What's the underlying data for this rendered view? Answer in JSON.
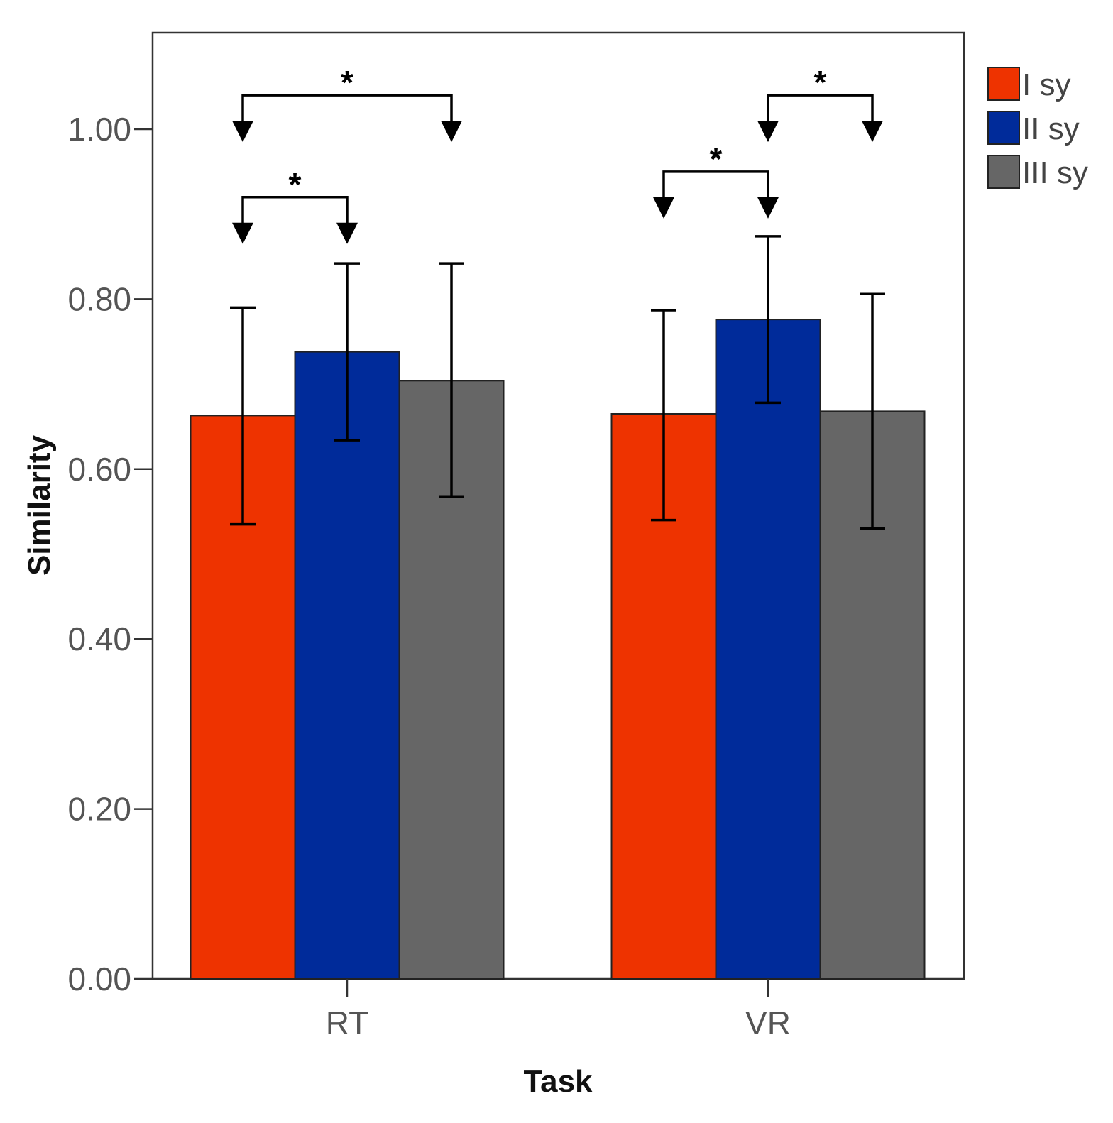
{
  "chart_data": {
    "type": "bar",
    "title": "",
    "xlabel": "Task",
    "ylabel": "Similarity",
    "ylim": [
      0,
      1.1
    ],
    "yticks": [
      "0.00",
      "0.20",
      "0.40",
      "0.60",
      "0.80",
      "1.00"
    ],
    "grid": false,
    "legend_position": "top-right",
    "categories": [
      "RT",
      "VR"
    ],
    "series": [
      {
        "name": "I sy",
        "color": "#EE3300",
        "values": [
          0.663,
          0.665
        ],
        "err_low": [
          0.535,
          0.54
        ],
        "err_high": [
          0.79,
          0.787
        ]
      },
      {
        "name": "II sy",
        "color": "#002B9A",
        "values": [
          0.738,
          0.776
        ],
        "err_low": [
          0.634,
          0.678
        ],
        "err_high": [
          0.842,
          0.874
        ]
      },
      {
        "name": "III sy",
        "color": "#666666",
        "values": [
          0.704,
          0.668
        ],
        "err_low": [
          0.567,
          0.53
        ],
        "err_high": [
          0.842,
          0.806
        ]
      }
    ],
    "annotations": [
      {
        "label": "*",
        "category": "RT",
        "from_series": 0,
        "to_series": 2,
        "level": 1.04
      },
      {
        "label": "*",
        "category": "RT",
        "from_series": 0,
        "to_series": 1,
        "level": 0.92
      },
      {
        "label": "*",
        "category": "VR",
        "from_series": 1,
        "to_series": 2,
        "level": 1.04
      },
      {
        "label": "*",
        "category": "VR",
        "from_series": 0,
        "to_series": 1,
        "level": 0.95
      }
    ]
  }
}
